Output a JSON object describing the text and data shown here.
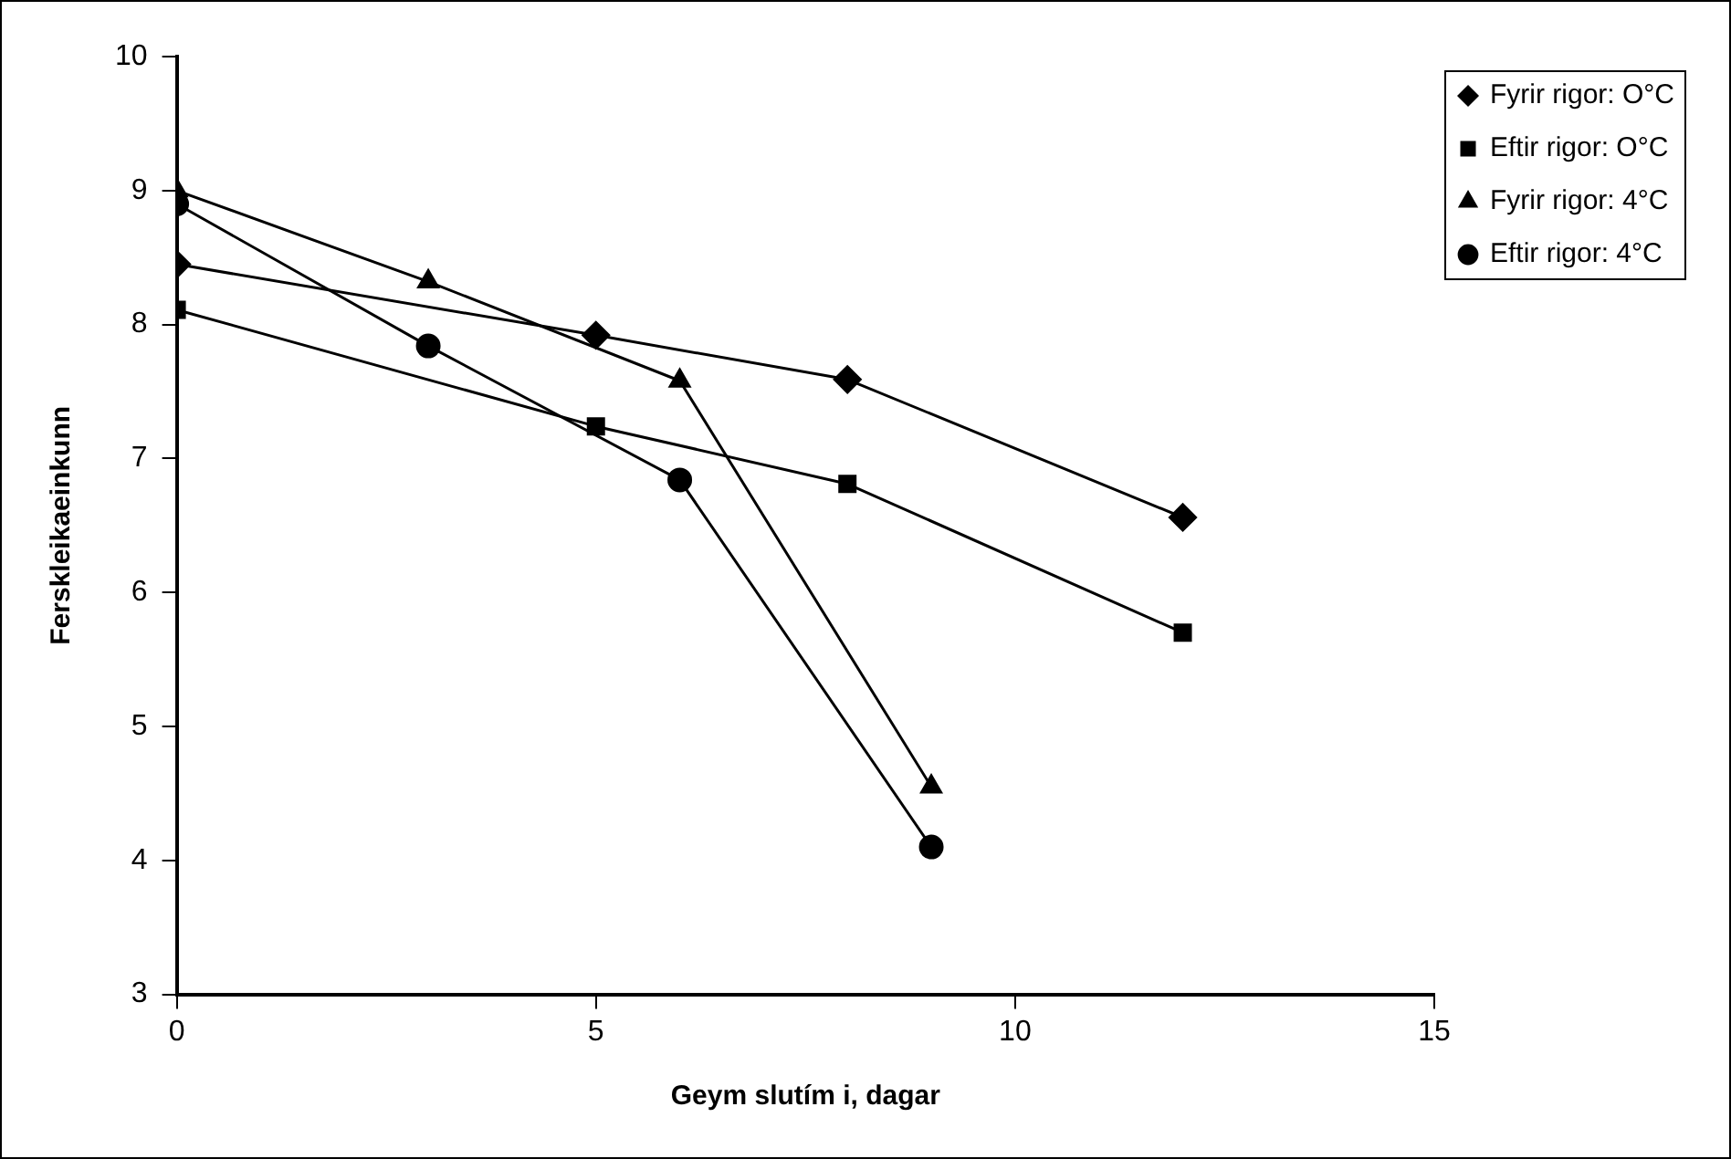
{
  "chart_data": {
    "type": "line",
    "xlabel": "Geym slutím i, dagar",
    "ylabel": "Ferskleikaeinkunn",
    "xlim": [
      0,
      15
    ],
    "xticks": [
      0,
      5,
      10,
      15
    ],
    "ylim": [
      3,
      10
    ],
    "yticks": [
      3,
      4,
      5,
      6,
      7,
      8,
      9,
      10
    ],
    "legend": "top right",
    "line_style": "solid",
    "series": [
      {
        "name": "Fyrir rigor: O°C",
        "color": "#000000",
        "marker": "diamond",
        "x": [
          0,
          5,
          8,
          12
        ],
        "values": [
          8.45,
          7.92,
          7.59,
          6.56
        ]
      },
      {
        "name": "Eftir rigor: O°C",
        "color": "#000000",
        "marker": "square",
        "x": [
          0,
          5,
          8,
          12
        ],
        "values": [
          8.11,
          7.24,
          6.81,
          5.7
        ]
      },
      {
        "name": "Fyrir rigor: 4°C",
        "color": "#000000",
        "marker": "triangle",
        "x": [
          0,
          3,
          6,
          9
        ],
        "values": [
          9.0,
          8.32,
          7.58,
          4.55
        ]
      },
      {
        "name": "Eftir rigor: 4°C",
        "color": "#000000",
        "marker": "circle",
        "x": [
          0,
          3,
          6,
          9
        ],
        "values": [
          8.9,
          7.84,
          6.84,
          4.1
        ]
      }
    ]
  }
}
